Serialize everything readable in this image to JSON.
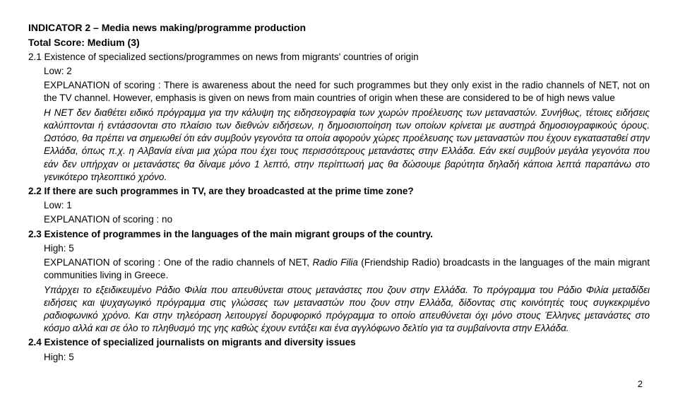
{
  "title": "INDICATOR 2 – Media news making/programme production",
  "score_line": "Total Score: Medium (3)",
  "s1": {
    "head": "2.1 Existence of specialized sections/programmes on news from migrants' countries of origin",
    "rating": "Low: 2",
    "expl": "EXPLANATION of scoring : There is awareness about the need for such programmes but they only exist in the radio channels of NET, not on the TV channel.  However, emphasis is given on news from main countries of origin when these are considered to be of high news value",
    "body_it_prefix": "Η ΝΕΤ δεν διαθέτει ειδικό πρόγραμμα για την κάλυψη της ειδησεογραφία των χωρών προέλευσης των μεταναστών. Συνήθως, τέτοιες ειδήσεις καλύπτονται ή εντάσσονται στο πλαίσιο των διεθνών ειδήσεων, η δημοσιοποίηση των οποίων κρίνεται με αυστηρά δημοσιογραφικούς όρους. Ωστόσο, θα πρέπει να σημειωθεί ότι εάν συμβούν γεγονότα τα οποία αφορούν χώρες προέλευσης των μεταναστών που έχουν εγκατασταθεί στην Ελλάδα, όπως π.χ. η Αλβανία είναι μια χώρα που έχει τους περισσότερους μετανάστες στην Ελλάδα.",
    "body_it_suffix": " Εάν εκεί συμβούν μεγάλα γεγονότα που εάν δεν υπήρχαν οι μετανάστες θα δίναμε μόνο 1 λεπτό, στην περίπτωσή μας θα δώσουμε βαρύτητα δηλαδή κάποια λεπτά παραπάνω στο γενικότερο τηλεοπτικό χρόνο."
  },
  "s2": {
    "head": "2.2 If there are such programmes in TV, are they broadcasted at the prime time zone?",
    "rating": "Low: 1",
    "expl": "EXPLANATION of scoring : no"
  },
  "s3": {
    "head": "2.3 Existence of programmes in the languages of the main migrant groups of the country.",
    "rating": "High: 5",
    "expl_prefix": "EXPLANATION of scoring : One of the radio channels of NET, ",
    "expl_italic": "Radio Filia",
    "expl_suffix": " (Friendship Radio) broadcasts in the languages of the main migrant communities living in Greece.",
    "body_it_prefix": "Υπάρχει το εξειδικευμένο Ράδιο Φιλία που απευθύνεται στους μετανάστες που ζουν στην Ελλάδα.",
    "body_it_suffix": " Το πρόγραμμα του Ράδιο Φιλία μεταδίδει ειδήσεις και ψυχαγωγικό πρόγραμμα στις γλώσσες των μεταναστών που ζουν στην Ελλάδα, δίδοντας στις κοινότητές τους συγκεκριμένο ραδιοφωνικό χρόνο. Και στην τηλεόραση λειτουργεί δορυφορικό πρόγραμμα το οποίο απευθύνεται όχι μόνο στους Έλληνες μετανάστες στο κόσμο αλλά και σε όλο το πληθυσμό της γης καθώς έχουν εντάξει και ένα αγγλόφωνο δελτίο για τα συμβαίνοντα στην Ελλάδα."
  },
  "s4": {
    "head": "2.4 Existence of specialized journalists on migrants and diversity issues",
    "rating": "High: 5"
  },
  "page_num": "2"
}
